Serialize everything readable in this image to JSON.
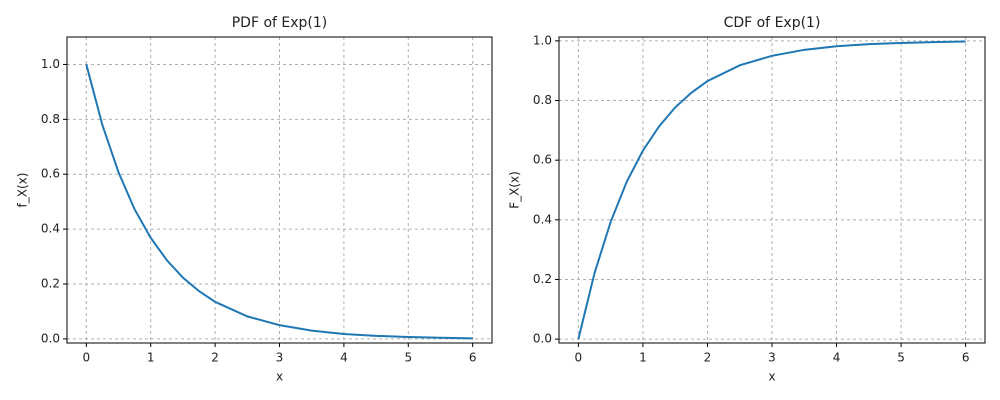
{
  "chart_data": [
    {
      "type": "line",
      "title": "PDF of Exp(1)",
      "x_label": "x",
      "y_label": "f_X(x)",
      "x": [
        0,
        0.25,
        0.5,
        0.75,
        1,
        1.25,
        1.5,
        1.75,
        2,
        2.5,
        3,
        3.5,
        4,
        4.5,
        5,
        5.5,
        6
      ],
      "series": [
        {
          "color": "#1f77b4",
          "values": [
            1,
            0.779,
            0.607,
            0.472,
            0.368,
            0.287,
            0.223,
            0.174,
            0.135,
            0.082,
            0.05,
            0.03,
            0.018,
            0.011,
            0.007,
            0.004,
            0.002
          ]
        }
      ],
      "xlim": [
        -0.3,
        6.3
      ],
      "xticks": [
        0,
        1,
        2,
        3,
        4,
        5,
        6
      ],
      "ylim": [
        -0.015,
        1.1
      ],
      "yticks": [
        {
          "value": 0,
          "label": "0.0"
        },
        0.2,
        0.4,
        0.6,
        0.8,
        {
          "value": 1,
          "label": "1.0"
        }
      ],
      "grid": true
    },
    {
      "type": "line",
      "title": "CDF of Exp(1)",
      "x_label": "x",
      "y_label": "F_X(x)",
      "x": [
        0,
        0.25,
        0.5,
        0.75,
        1,
        1.25,
        1.5,
        1.75,
        2,
        2.5,
        3,
        3.5,
        4,
        4.5,
        5,
        5.5,
        6
      ],
      "series": [
        {
          "color": "#1f77b4",
          "values": [
            0,
            0.221,
            0.393,
            0.528,
            0.632,
            0.713,
            0.777,
            0.826,
            0.865,
            0.918,
            0.95,
            0.97,
            0.982,
            0.989,
            0.993,
            0.996,
            0.998
          ]
        }
      ],
      "xlim": [
        -0.3,
        6.3
      ],
      "xticks": [
        0,
        1,
        2,
        3,
        4,
        5,
        6
      ],
      "ylim": [
        -0.013,
        1.013
      ],
      "yticks": [
        {
          "value": 0,
          "label": "0.0"
        },
        0.2,
        0.4,
        0.6,
        0.8,
        {
          "value": 1,
          "label": "1.0"
        }
      ],
      "grid": true
    }
  ]
}
